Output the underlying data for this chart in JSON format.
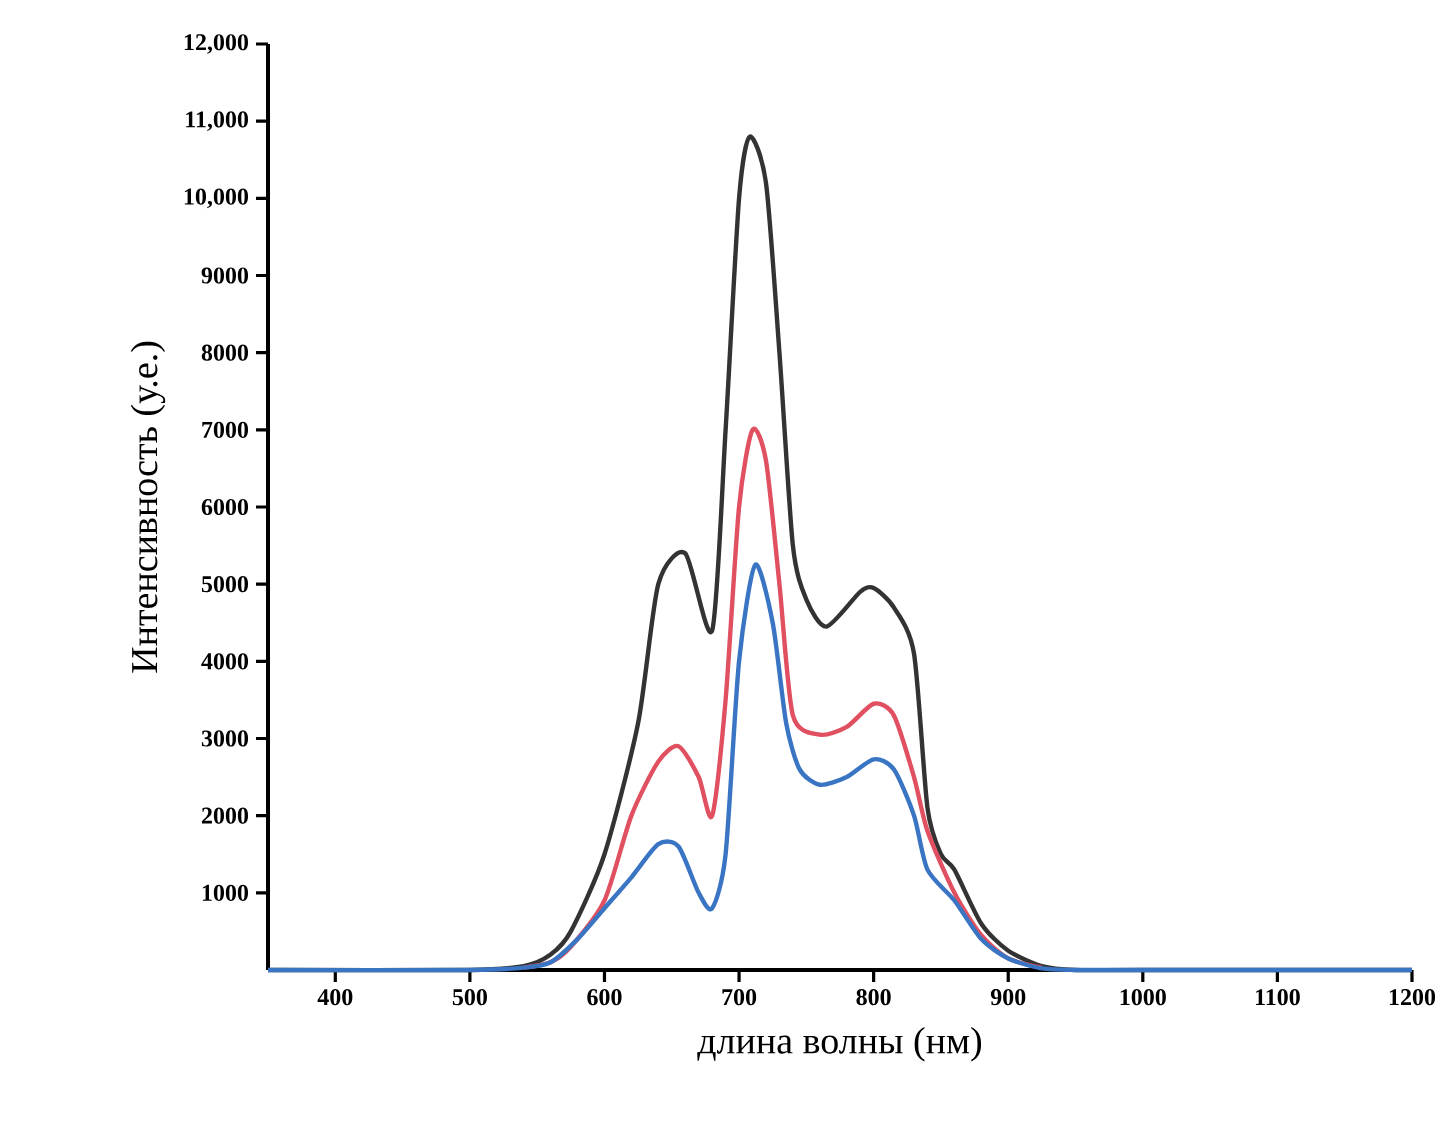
{
  "chart_data": {
    "type": "line",
    "xlabel": "длина волны (нм)",
    "ylabel": "Интенсивность (у.е.)",
    "xlim": [
      350,
      1200
    ],
    "ylim": [
      0,
      12000
    ],
    "xticks": [
      400,
      500,
      600,
      700,
      800,
      900,
      1000,
      1100,
      1200
    ],
    "yticks": [
      1000,
      2000,
      3000,
      4000,
      5000,
      6000,
      7000,
      8000,
      9000,
      {
        "value": 10000,
        "label": "10,000"
      },
      {
        "value": 11000,
        "label": "11,000"
      },
      {
        "value": 12000,
        "label": "12,000"
      }
    ],
    "grid": false,
    "marker": "none",
    "line_style": "solid",
    "series": [
      {
        "color": "#333333",
        "x": [
          350,
          500,
          540,
          560,
          575,
          600,
          625,
          640,
          660,
          680,
          690,
          700,
          708,
          720,
          730,
          740,
          750,
          765,
          790,
          800,
          815,
          830,
          840,
          850,
          860,
          880,
          900,
          925,
          950,
          1000,
          1200
        ],
        "values": [
          0,
          0,
          50,
          200,
          500,
          1500,
          3200,
          5000,
          5400,
          4400,
          7000,
          10000,
          10800,
          10200,
          8000,
          5500,
          4800,
          4450,
          4900,
          4950,
          4700,
          4100,
          2100,
          1500,
          1300,
          600,
          250,
          50,
          0,
          0,
          0
        ]
      },
      {
        "color": "#e05060",
        "x": [
          540,
          560,
          575,
          600,
          620,
          640,
          655,
          670,
          680,
          690,
          700,
          710,
          720,
          730,
          740,
          760,
          780,
          800,
          815,
          830,
          840,
          860,
          880,
          900,
          925
        ],
        "values": [
          30,
          100,
          300,
          900,
          2000,
          2700,
          2900,
          2500,
          2000,
          3500,
          6000,
          7000,
          6600,
          5000,
          3300,
          3050,
          3150,
          3450,
          3300,
          2500,
          1800,
          1000,
          450,
          150,
          30
        ]
      },
      {
        "color": "#3a75c4",
        "x": [
          350,
          500,
          540,
          560,
          580,
          600,
          620,
          640,
          655,
          670,
          680,
          690,
          700,
          712,
          725,
          735,
          745,
          760,
          780,
          800,
          815,
          830,
          840,
          860,
          880,
          900,
          925,
          950,
          1000,
          1200
        ],
        "values": [
          0,
          0,
          30,
          100,
          400,
          800,
          1200,
          1630,
          1600,
          1000,
          800,
          1500,
          4000,
          5250,
          4500,
          3200,
          2600,
          2400,
          2500,
          2730,
          2600,
          2000,
          1300,
          900,
          400,
          150,
          20,
          0,
          0,
          0
        ]
      }
    ]
  }
}
